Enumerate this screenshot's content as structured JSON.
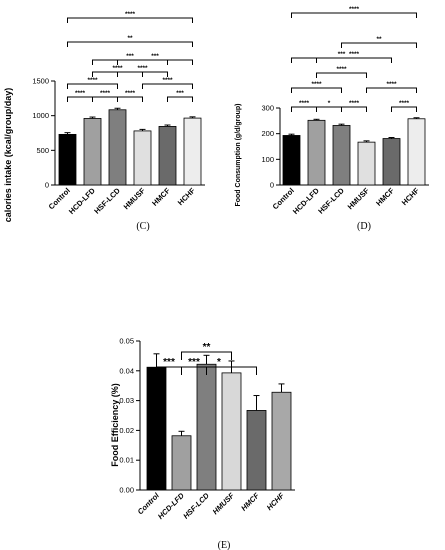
{
  "chart_data": [
    {
      "type": "bar",
      "panel_label": "(C)",
      "ylabel": "calories intake (kcal/group/day)",
      "ylim": [
        0,
        1500
      ],
      "yticks": [
        0,
        500,
        1000,
        1500
      ],
      "categories": [
        "Control",
        "HCD-LFD",
        "HSF-LCD",
        "HMUSF",
        "HMCF",
        "HCHF"
      ],
      "values": [
        730,
        960,
        1085,
        780,
        845,
        965
      ],
      "errors": [
        25,
        20,
        22,
        22,
        20,
        18
      ],
      "colors": [
        "#000000",
        "#a0a0a0",
        "#7f7f7f",
        "#e0e0e0",
        "#6a6a6a",
        "#ededed"
      ],
      "significance": [
        {
          "from": 0,
          "to": 1,
          "label": "****"
        },
        {
          "from": 1,
          "to": 2,
          "label": "****"
        },
        {
          "from": 2,
          "to": 3,
          "label": "****"
        },
        {
          "from": 4,
          "to": 5,
          "label": "***"
        },
        {
          "from": 0,
          "to": 2,
          "label": "****"
        },
        {
          "from": 3,
          "to": 5,
          "label": "****"
        },
        {
          "from": 1,
          "to": 3,
          "label": "****"
        },
        {
          "from": 2,
          "to": 4,
          "label": "****"
        },
        {
          "from": 1,
          "to": 4,
          "label": "***"
        },
        {
          "from": 2,
          "to": 5,
          "label": "***"
        },
        {
          "from": 0,
          "to": 5,
          "label": "**"
        },
        {
          "from": 0,
          "to": 5,
          "label": "****"
        }
      ]
    },
    {
      "type": "bar",
      "panel_label": "(D)",
      "ylabel": "Food Consumption (g/d/group)",
      "ylim": [
        0,
        300
      ],
      "yticks": [
        0,
        100,
        200,
        300
      ],
      "categories": [
        "Control",
        "HCD-LFD",
        "HSF-LCD",
        "HMUSF",
        "HMCF",
        "HCHF"
      ],
      "values": [
        193,
        252,
        232,
        167,
        181,
        258
      ],
      "errors": [
        5,
        4,
        5,
        5,
        4,
        4
      ],
      "colors": [
        "#000000",
        "#a0a0a0",
        "#7f7f7f",
        "#e0e0e0",
        "#6a6a6a",
        "#ededed"
      ],
      "significance": [
        {
          "from": 0,
          "to": 1,
          "label": "****"
        },
        {
          "from": 1,
          "to": 2,
          "label": "*"
        },
        {
          "from": 2,
          "to": 3,
          "label": "****"
        },
        {
          "from": 4,
          "to": 5,
          "label": "****"
        },
        {
          "from": 0,
          "to": 2,
          "label": "****"
        },
        {
          "from": 3,
          "to": 5,
          "label": "****"
        },
        {
          "from": 1,
          "to": 3,
          "label": "****"
        },
        {
          "from": 1,
          "to": 4,
          "label": "****"
        },
        {
          "from": 0,
          "to": 4,
          "label": "***"
        },
        {
          "from": 2,
          "to": 5,
          "label": "**"
        },
        {
          "from": 0,
          "to": 5,
          "label": "****"
        }
      ]
    },
    {
      "type": "bar",
      "panel_label": "(E)",
      "ylabel": "Food Efficiency (%)",
      "ylim": [
        0,
        0.05
      ],
      "yticks": [
        "0.00",
        "0.01",
        "0.02",
        "0.03",
        "0.04",
        "0.05"
      ],
      "categories": [
        "Control",
        "HCD-LFD",
        "HSF-LCD",
        "HMUSF",
        "HMCF",
        "HCHF"
      ],
      "values": [
        0.0412,
        0.0182,
        0.0422,
        0.0393,
        0.0267,
        0.0328
      ],
      "errors": [
        0.0045,
        0.0015,
        0.003,
        0.004,
        0.005,
        0.0028
      ],
      "colors": [
        "#000000",
        "#a0a0a0",
        "#7f7f7f",
        "#d8d8d8",
        "#6a6a6a",
        "#a8a8a8"
      ],
      "significance": [
        {
          "from": 0,
          "to": 1,
          "label": "***"
        },
        {
          "from": 1,
          "to": 2,
          "label": "***"
        },
        {
          "from": 1,
          "to": 4,
          "label": "*"
        },
        {
          "from": 1,
          "to": 3,
          "label": "**"
        }
      ]
    }
  ]
}
